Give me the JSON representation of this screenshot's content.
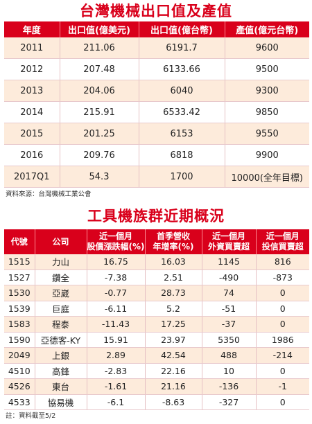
{
  "export_table": {
    "title": "台灣機械出口值及產值",
    "headers": [
      "年度",
      "出口值(億美元)",
      "出口值(億台幣)",
      "產值(億元台幣)"
    ],
    "rows": [
      [
        "2011",
        "211.06",
        "6191.7",
        "9600"
      ],
      [
        "2012",
        "207.48",
        "6133.66",
        "9500"
      ],
      [
        "2013",
        "204.06",
        "6040",
        "9300"
      ],
      [
        "2014",
        "215.91",
        "6533.42",
        "9850"
      ],
      [
        "2015",
        "201.25",
        "6153",
        "9550"
      ],
      [
        "2016",
        "209.76",
        "6818",
        "9900"
      ],
      [
        "2017Q1",
        "54.3",
        "1700",
        "10000(全年目標)"
      ]
    ],
    "source": "資料來源：台灣機械工業公會"
  },
  "stock_table": {
    "title": "工具機族群近期概況",
    "headers": [
      [
        "代號"
      ],
      [
        "公司"
      ],
      [
        "近一個月",
        "股價漲跌幅(%)"
      ],
      [
        "首季營收",
        "年增率(%)"
      ],
      [
        "近一個月",
        "外資買賣超"
      ],
      [
        "近一個月",
        "投信買賣超"
      ]
    ],
    "rows": [
      [
        "1515",
        "力山",
        "16.75",
        "16.03",
        "1145",
        "816"
      ],
      [
        "1527",
        "鑽全",
        "-7.38",
        "2.51",
        "-490",
        "-873"
      ],
      [
        "1530",
        "亞崴",
        "-0.77",
        "28.73",
        "74",
        "0"
      ],
      [
        "1539",
        "巨庭",
        "-6.11",
        "5.2",
        "-51",
        "0"
      ],
      [
        "1583",
        "程泰",
        "-11.43",
        "17.25",
        "-37",
        "0"
      ],
      [
        "1590",
        "亞德客-KY",
        "15.91",
        "23.97",
        "5350",
        "1986"
      ],
      [
        "2049",
        "上銀",
        "2.89",
        "42.54",
        "488",
        "-214"
      ],
      [
        "4510",
        "高鋒",
        "-2.83",
        "22.16",
        "10",
        "0"
      ],
      [
        "4526",
        "東台",
        "-1.61",
        "21.16",
        "-136",
        "-1"
      ],
      [
        "4533",
        "協易機",
        "-6.1",
        "-8.63",
        "-327",
        "0"
      ]
    ],
    "note": "註：資料截至5/2"
  }
}
